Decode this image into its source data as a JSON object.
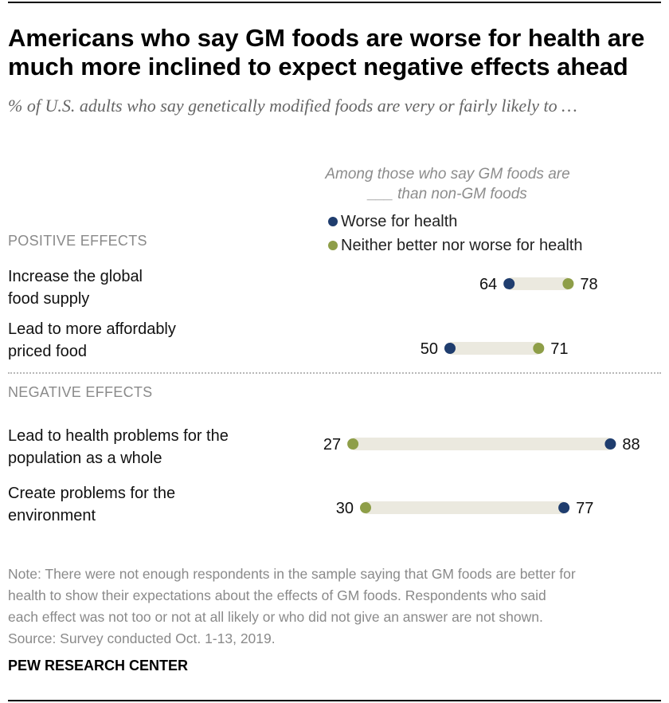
{
  "title": "Americans who say GM foods are worse for health are much more inclined to expect negative effects ahead",
  "subtitle": "% of U.S. adults who say genetically modified foods are very or fairly likely to …",
  "among_lines": [
    "Among those who say GM foods are",
    "___ than non-GM foods"
  ],
  "colors": {
    "worse": "#1f3d6e",
    "neither": "#8e9e48",
    "bar": "#ebe9df"
  },
  "sections": {
    "positive": "POSITIVE EFFECTS",
    "negative": "NEGATIVE EFFECTS"
  },
  "chart_data": {
    "type": "dot",
    "series": [
      {
        "name": "Worse for health",
        "values": [
          64,
          50,
          88,
          77
        ]
      },
      {
        "name": "Neither better nor worse for health",
        "values": [
          78,
          71,
          27,
          30
        ]
      }
    ],
    "categories": [
      "Increase the global food supply",
      "Lead to more affordably priced food",
      "Lead to health problems for the population as a whole",
      "Create problems for the environment"
    ],
    "category_lines": [
      [
        "Increase the global",
        "food supply"
      ],
      [
        "Lead to more affordably",
        "priced food"
      ],
      [
        "Lead to health problems for the",
        "population as a whole"
      ],
      [
        "Create problems for the",
        "environment"
      ]
    ],
    "groups": [
      "POSITIVE EFFECTS",
      "POSITIVE EFFECTS",
      "NEGATIVE EFFECTS",
      "NEGATIVE EFFECTS"
    ],
    "value_labels": [
      {
        "worse": "64",
        "neither": "78"
      },
      {
        "worse": "50",
        "neither": "71"
      },
      {
        "worse": "88",
        "neither": "27"
      },
      {
        "worse": "77",
        "neither": "30"
      }
    ]
  },
  "note_lines": [
    "Note: There were not enough respondents in the sample saying that GM foods are better for",
    "health to show their expectations about the effects of GM foods. Respondents who said",
    "each effect was not too or not at all likely or who did not give an answer are not shown.",
    "Source: Survey conducted Oct. 1-13, 2019."
  ],
  "footer": "PEW RESEARCH CENTER"
}
